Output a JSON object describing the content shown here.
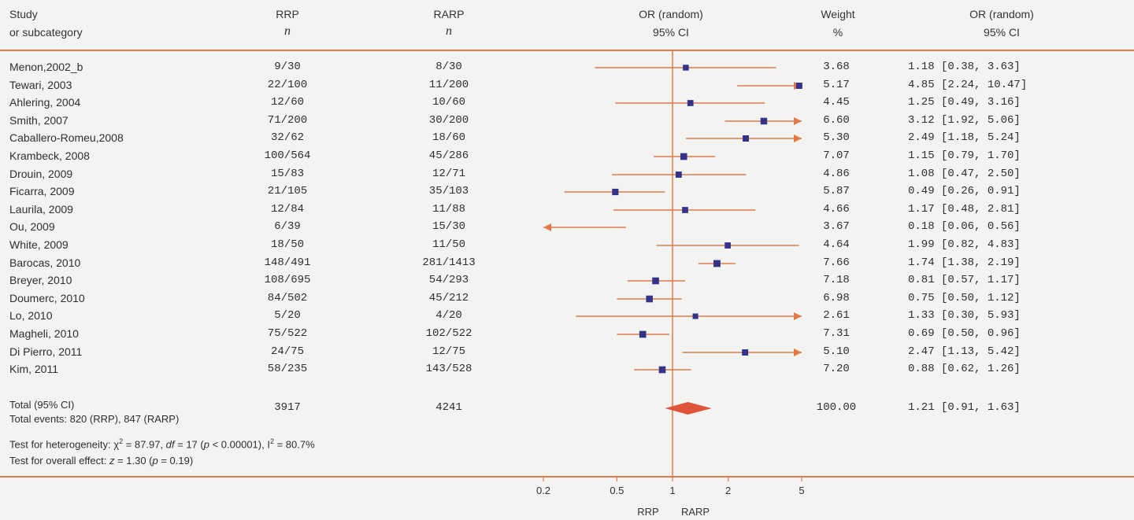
{
  "headers": {
    "study": "Study",
    "study_sub": "or subcategory",
    "rrp": "RRP",
    "rrp_sub": "n",
    "rarp": "RARP",
    "rarp_sub": "n",
    "plot": "OR (random)",
    "plot_sub": "95% CI",
    "weight": "Weight",
    "weight_sub": "%",
    "or": "OR (random)",
    "or_sub": "95% CI"
  },
  "rows": [
    {
      "study": "Menon,2002_b",
      "rrp": "9/30",
      "rarp": "8/30",
      "weight": "3.68",
      "or_text": "1.18 [0.38, 3.63]"
    },
    {
      "study": "Tewari, 2003",
      "rrp": "22/100",
      "rarp": "11/200",
      "weight": "5.17",
      "or_text": "4.85 [2.24, 10.47]"
    },
    {
      "study": "Ahlering, 2004",
      "rrp": "12/60",
      "rarp": "10/60",
      "weight": "4.45",
      "or_text": "1.25 [0.49, 3.16]"
    },
    {
      "study": "Smith, 2007",
      "rrp": "71/200",
      "rarp": "30/200",
      "weight": "6.60",
      "or_text": "3.12 [1.92, 5.06]"
    },
    {
      "study": "Caballero-Romeu,2008",
      "rrp": "32/62",
      "rarp": "18/60",
      "weight": "5.30",
      "or_text": "2.49 [1.18, 5.24]"
    },
    {
      "study": "Krambeck, 2008",
      "rrp": "100/564",
      "rarp": "45/286",
      "weight": "7.07",
      "or_text": "1.15 [0.79, 1.70]"
    },
    {
      "study": "Drouin, 2009",
      "rrp": "15/83",
      "rarp": "12/71",
      "weight": "4.86",
      "or_text": "1.08 [0.47, 2.50]"
    },
    {
      "study": "Ficarra, 2009",
      "rrp": "21/105",
      "rarp": "35/103",
      "weight": "5.87",
      "or_text": "0.49 [0.26, 0.91]"
    },
    {
      "study": "Laurila, 2009",
      "rrp": "12/84",
      "rarp": "11/88",
      "weight": "4.66",
      "or_text": "1.17 [0.48, 2.81]"
    },
    {
      "study": "Ou, 2009",
      "rrp": "6/39",
      "rarp": "15/30",
      "weight": "3.67",
      "or_text": "0.18 [0.06, 0.56]"
    },
    {
      "study": "White, 2009",
      "rrp": "18/50",
      "rarp": "11/50",
      "weight": "4.64",
      "or_text": "1.99 [0.82, 4.83]"
    },
    {
      "study": "Barocas, 2010",
      "rrp": "148/491",
      "rarp": "281/1413",
      "weight": "7.66",
      "or_text": "1.74 [1.38, 2.19]"
    },
    {
      "study": "Breyer, 2010",
      "rrp": "108/695",
      "rarp": "54/293",
      "weight": "7.18",
      "or_text": "0.81 [0.57, 1.17]"
    },
    {
      "study": "Doumerc, 2010",
      "rrp": "84/502",
      "rarp": "45/212",
      "weight": "6.98",
      "or_text": "0.75 [0.50, 1.12]"
    },
    {
      "study": "Lo, 2010",
      "rrp": "5/20",
      "rarp": "4/20",
      "weight": "2.61",
      "or_text": "1.33 [0.30, 5.93]"
    },
    {
      "study": "Magheli, 2010",
      "rrp": "75/522",
      "rarp": "102/522",
      "weight": "7.31",
      "or_text": "0.69 [0.50, 0.96]"
    },
    {
      "study": "Di Pierro, 2011",
      "rrp": "24/75",
      "rarp": "12/75",
      "weight": "5.10",
      "or_text": "2.47 [1.13, 5.42]"
    },
    {
      "study": "Kim, 2011",
      "rrp": "58/235",
      "rarp": "143/528",
      "weight": "7.20",
      "or_text": "0.88 [0.62, 1.26]"
    }
  ],
  "total": {
    "label": "Total (95% CI)",
    "rrp": "3917",
    "rarp": "4241",
    "weight": "100.00",
    "or_text": "1.21 [0.91, 1.63]",
    "events": "Total events: 820 (RRP), 847 (RARP)"
  },
  "tests": {
    "heterogeneity_prefix": "Test for heterogeneity: χ",
    "heterogeneity_sup": "2",
    "heterogeneity_mid1": " = 87.97, ",
    "heterogeneity_df": "df",
    "heterogeneity_mid2": " = 17 (",
    "heterogeneity_p": "p",
    "heterogeneity_mid3": " < 0.00001), I",
    "heterogeneity_i2sup": "2",
    "heterogeneity_tail": " = 80.7%",
    "overall_prefix": "Test for overall effect: ",
    "overall_z": "z",
    "overall_mid": " = 1.30 (",
    "overall_p": "p",
    "overall_tail": " = 0.19)"
  },
  "axis": {
    "favours_left": "RRP",
    "favours_right": "RARP"
  },
  "colors": {
    "accent": "#e07a4a",
    "marker": "#33338a",
    "diamond": "#e0553a"
  },
  "chart_data": {
    "type": "scatter",
    "scale": "log",
    "xlim": [
      0.2,
      5
    ],
    "ticks": [
      0.2,
      0.5,
      1,
      2,
      5
    ],
    "tick_labels": [
      "0.2",
      "0.5",
      "1",
      "2",
      "5"
    ],
    "null_line": 1,
    "studies": [
      {
        "name": "Menon,2002_b",
        "or": 1.18,
        "lo": 0.38,
        "hi": 3.63,
        "weight": 3.68
      },
      {
        "name": "Tewari, 2003",
        "or": 4.85,
        "lo": 2.24,
        "hi": 10.47,
        "weight": 5.17
      },
      {
        "name": "Ahlering, 2004",
        "or": 1.25,
        "lo": 0.49,
        "hi": 3.16,
        "weight": 4.45
      },
      {
        "name": "Smith, 2007",
        "or": 3.12,
        "lo": 1.92,
        "hi": 5.06,
        "weight": 6.6
      },
      {
        "name": "Caballero-Romeu,2008",
        "or": 2.49,
        "lo": 1.18,
        "hi": 5.24,
        "weight": 5.3
      },
      {
        "name": "Krambeck, 2008",
        "or": 1.15,
        "lo": 0.79,
        "hi": 1.7,
        "weight": 7.07
      },
      {
        "name": "Drouin, 2009",
        "or": 1.08,
        "lo": 0.47,
        "hi": 2.5,
        "weight": 4.86
      },
      {
        "name": "Ficarra, 2009",
        "or": 0.49,
        "lo": 0.26,
        "hi": 0.91,
        "weight": 5.87
      },
      {
        "name": "Laurila, 2009",
        "or": 1.17,
        "lo": 0.48,
        "hi": 2.81,
        "weight": 4.66
      },
      {
        "name": "Ou, 2009",
        "or": 0.18,
        "lo": 0.06,
        "hi": 0.56,
        "weight": 3.67
      },
      {
        "name": "White, 2009",
        "or": 1.99,
        "lo": 0.82,
        "hi": 4.83,
        "weight": 4.64
      },
      {
        "name": "Barocas, 2010",
        "or": 1.74,
        "lo": 1.38,
        "hi": 2.19,
        "weight": 7.66
      },
      {
        "name": "Breyer, 2010",
        "or": 0.81,
        "lo": 0.57,
        "hi": 1.17,
        "weight": 7.18
      },
      {
        "name": "Doumerc, 2010",
        "or": 0.75,
        "lo": 0.5,
        "hi": 1.12,
        "weight": 6.98
      },
      {
        "name": "Lo, 2010",
        "or": 1.33,
        "lo": 0.3,
        "hi": 5.93,
        "weight": 2.61
      },
      {
        "name": "Magheli, 2010",
        "or": 0.69,
        "lo": 0.5,
        "hi": 0.96,
        "weight": 7.31
      },
      {
        "name": "Di Pierro, 2011",
        "or": 2.47,
        "lo": 1.13,
        "hi": 5.42,
        "weight": 5.1
      },
      {
        "name": "Kim, 2011",
        "or": 0.88,
        "lo": 0.62,
        "hi": 1.26,
        "weight": 7.2
      }
    ],
    "pooled": {
      "name": "Total (95% CI)",
      "or": 1.21,
      "lo": 0.91,
      "hi": 1.63
    }
  }
}
